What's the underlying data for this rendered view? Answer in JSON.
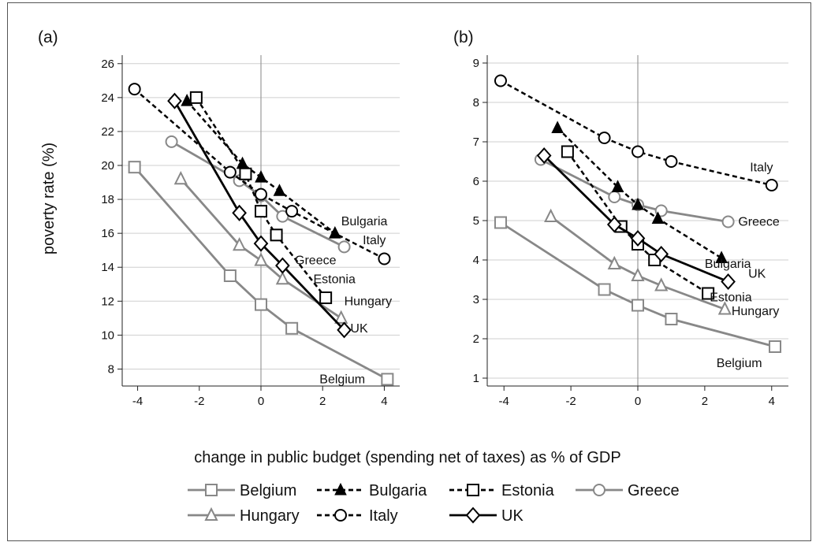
{
  "chart_data": {
    "type": "line",
    "ylabel": "poverty rate (%)",
    "xlabel": "change in public budget (spending net of taxes) as % of GDP",
    "legend_placement": "bottom",
    "legend": [
      {
        "name": "Belgium",
        "color": "#888888",
        "dash": "solid",
        "marker": "square-open"
      },
      {
        "name": "Bulgaria",
        "color": "#000000",
        "dash": "dashed",
        "marker": "triangle-filled"
      },
      {
        "name": "Estonia",
        "color": "#000000",
        "dash": "dashed",
        "marker": "square-open"
      },
      {
        "name": "Greece",
        "color": "#888888",
        "dash": "solid",
        "marker": "circle-open"
      },
      {
        "name": "Hungary",
        "color": "#888888",
        "dash": "solid",
        "marker": "triangle-open"
      },
      {
        "name": "Italy",
        "color": "#000000",
        "dash": "dashed",
        "marker": "circle-open"
      },
      {
        "name": "UK",
        "color": "#000000",
        "dash": "solid",
        "marker": "diamond-open"
      }
    ],
    "panels": [
      {
        "label": "(a)",
        "xlim": [
          -4.5,
          4.5
        ],
        "ylim": [
          7,
          26.5
        ],
        "xticks": [
          -4,
          -2,
          0,
          2,
          4
        ],
        "yticks": [
          8,
          10,
          12,
          14,
          16,
          18,
          20,
          22,
          24,
          26
        ],
        "grid": true,
        "series": [
          {
            "name": "Belgium",
            "x": [
              -4.1,
              -1.0,
              0.0,
              1.0,
              4.1
            ],
            "y": [
              19.9,
              13.5,
              11.8,
              10.4,
              7.4
            ]
          },
          {
            "name": "Bulgaria",
            "x": [
              -2.4,
              -0.6,
              0.0,
              0.6,
              2.4
            ],
            "y": [
              23.8,
              20.1,
              19.3,
              18.5,
              16.0
            ]
          },
          {
            "name": "Estonia",
            "x": [
              -2.1,
              -0.5,
              0.0,
              0.5,
              2.1
            ],
            "y": [
              24.0,
              19.5,
              17.3,
              15.9,
              12.2
            ]
          },
          {
            "name": "Greece",
            "x": [
              -2.9,
              -0.7,
              0.0,
              0.7,
              2.7
            ],
            "y": [
              21.4,
              19.1,
              18.2,
              17.0,
              15.2
            ]
          },
          {
            "name": "Hungary",
            "x": [
              -2.6,
              -0.7,
              0.0,
              0.7,
              2.6
            ],
            "y": [
              19.2,
              15.3,
              14.4,
              13.3,
              11.0
            ]
          },
          {
            "name": "Italy",
            "x": [
              -4.1,
              -1.0,
              0.0,
              1.0,
              4.0
            ],
            "y": [
              24.5,
              19.6,
              18.3,
              17.3,
              14.5
            ]
          },
          {
            "name": "UK",
            "x": [
              -2.8,
              -0.7,
              0.0,
              0.7,
              2.7
            ],
            "y": [
              23.8,
              17.2,
              15.4,
              14.1,
              10.3
            ]
          }
        ],
        "annotations": [
          {
            "text": "Bulgaria",
            "x": 2.6,
            "y": 16.7
          },
          {
            "text": "Italy",
            "x": 3.3,
            "y": 15.6
          },
          {
            "text": "Greece",
            "x": 1.1,
            "y": 14.4
          },
          {
            "text": "Estonia",
            "x": 1.7,
            "y": 13.3
          },
          {
            "text": "Hungary",
            "x": 2.7,
            "y": 12.0
          },
          {
            "text": "UK",
            "x": 2.9,
            "y": 10.4
          },
          {
            "text": "Belgium",
            "x": 1.9,
            "y": 7.4
          }
        ]
      },
      {
        "label": "(b)",
        "xlim": [
          -4.5,
          4.5
        ],
        "ylim": [
          0.8,
          9.2
        ],
        "xticks": [
          -4,
          -2,
          0,
          2,
          4
        ],
        "yticks": [
          1,
          2,
          3,
          4,
          5,
          6,
          7,
          8,
          9
        ],
        "grid": true,
        "series": [
          {
            "name": "Belgium",
            "x": [
              -4.1,
              -1.0,
              0.0,
              1.0,
              4.1
            ],
            "y": [
              4.95,
              3.25,
              2.85,
              2.5,
              1.8
            ]
          },
          {
            "name": "Bulgaria",
            "x": [
              -2.4,
              -0.6,
              0.0,
              0.6,
              2.5
            ],
            "y": [
              7.35,
              5.85,
              5.4,
              5.05,
              4.05
            ]
          },
          {
            "name": "Estonia",
            "x": [
              -2.1,
              -0.5,
              0.0,
              0.5,
              2.1
            ],
            "y": [
              6.75,
              4.85,
              4.4,
              4.0,
              3.15
            ]
          },
          {
            "name": "Greece",
            "x": [
              -2.9,
              -0.7,
              0.0,
              0.7,
              2.7
            ],
            "y": [
              6.55,
              5.6,
              5.4,
              5.25,
              4.97
            ]
          },
          {
            "name": "Hungary",
            "x": [
              -2.6,
              -0.7,
              0.0,
              0.7,
              2.6
            ],
            "y": [
              5.1,
              3.9,
              3.6,
              3.35,
              2.75
            ]
          },
          {
            "name": "Italy",
            "x": [
              -4.1,
              -1.0,
              0.0,
              1.0,
              4.0
            ],
            "y": [
              8.55,
              7.1,
              6.75,
              6.5,
              5.9
            ]
          },
          {
            "name": "UK",
            "x": [
              -2.8,
              -0.7,
              0.0,
              0.7,
              2.7
            ],
            "y": [
              6.65,
              4.9,
              4.55,
              4.15,
              3.45
            ]
          }
        ],
        "annotations": [
          {
            "text": "Italy",
            "x": 3.35,
            "y": 6.35
          },
          {
            "text": "Greece",
            "x": 3.0,
            "y": 4.97
          },
          {
            "text": "Bulgaria",
            "x": 2.0,
            "y": 3.9
          },
          {
            "text": "UK",
            "x": 3.3,
            "y": 3.65
          },
          {
            "text": "Estonia",
            "x": 2.15,
            "y": 3.05
          },
          {
            "text": "Hungary",
            "x": 2.8,
            "y": 2.7
          },
          {
            "text": "Belgium",
            "x": 2.35,
            "y": 1.38
          }
        ]
      }
    ]
  }
}
